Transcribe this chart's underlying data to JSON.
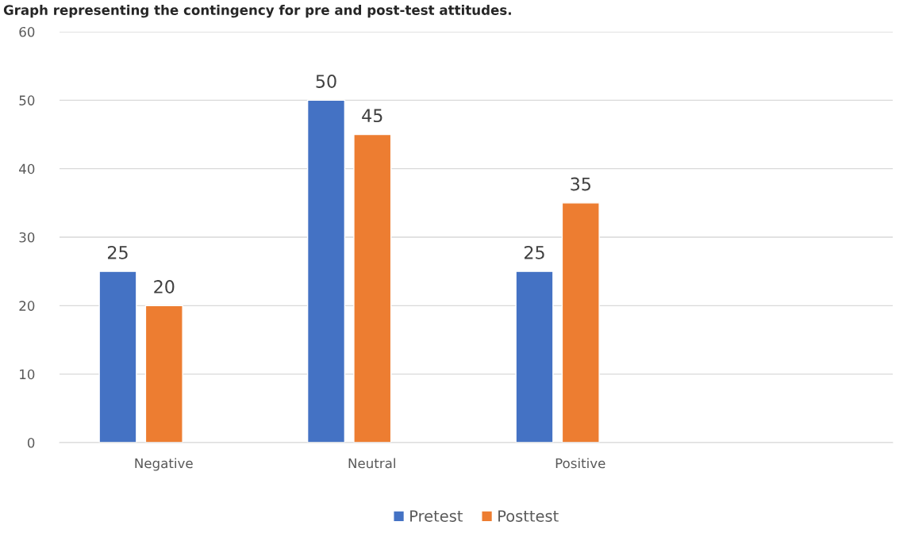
{
  "chart_data": {
    "type": "bar",
    "title": "Graph representing the contingency for pre and post-test attitudes.",
    "categories": [
      "Negative",
      "Neutral",
      "Positive",
      null
    ],
    "series": [
      {
        "name": "Pretest",
        "color": "#4472c4",
        "values": [
          25,
          50,
          25,
          null
        ]
      },
      {
        "name": "Posttest",
        "color": "#ed7d31",
        "values": [
          20,
          45,
          35,
          null
        ]
      }
    ],
    "ylim": [
      0,
      60
    ],
    "yticks": [
      0,
      10,
      20,
      30,
      40,
      50,
      60
    ],
    "grid": "y",
    "legend": "bottom",
    "data_labels": true
  }
}
